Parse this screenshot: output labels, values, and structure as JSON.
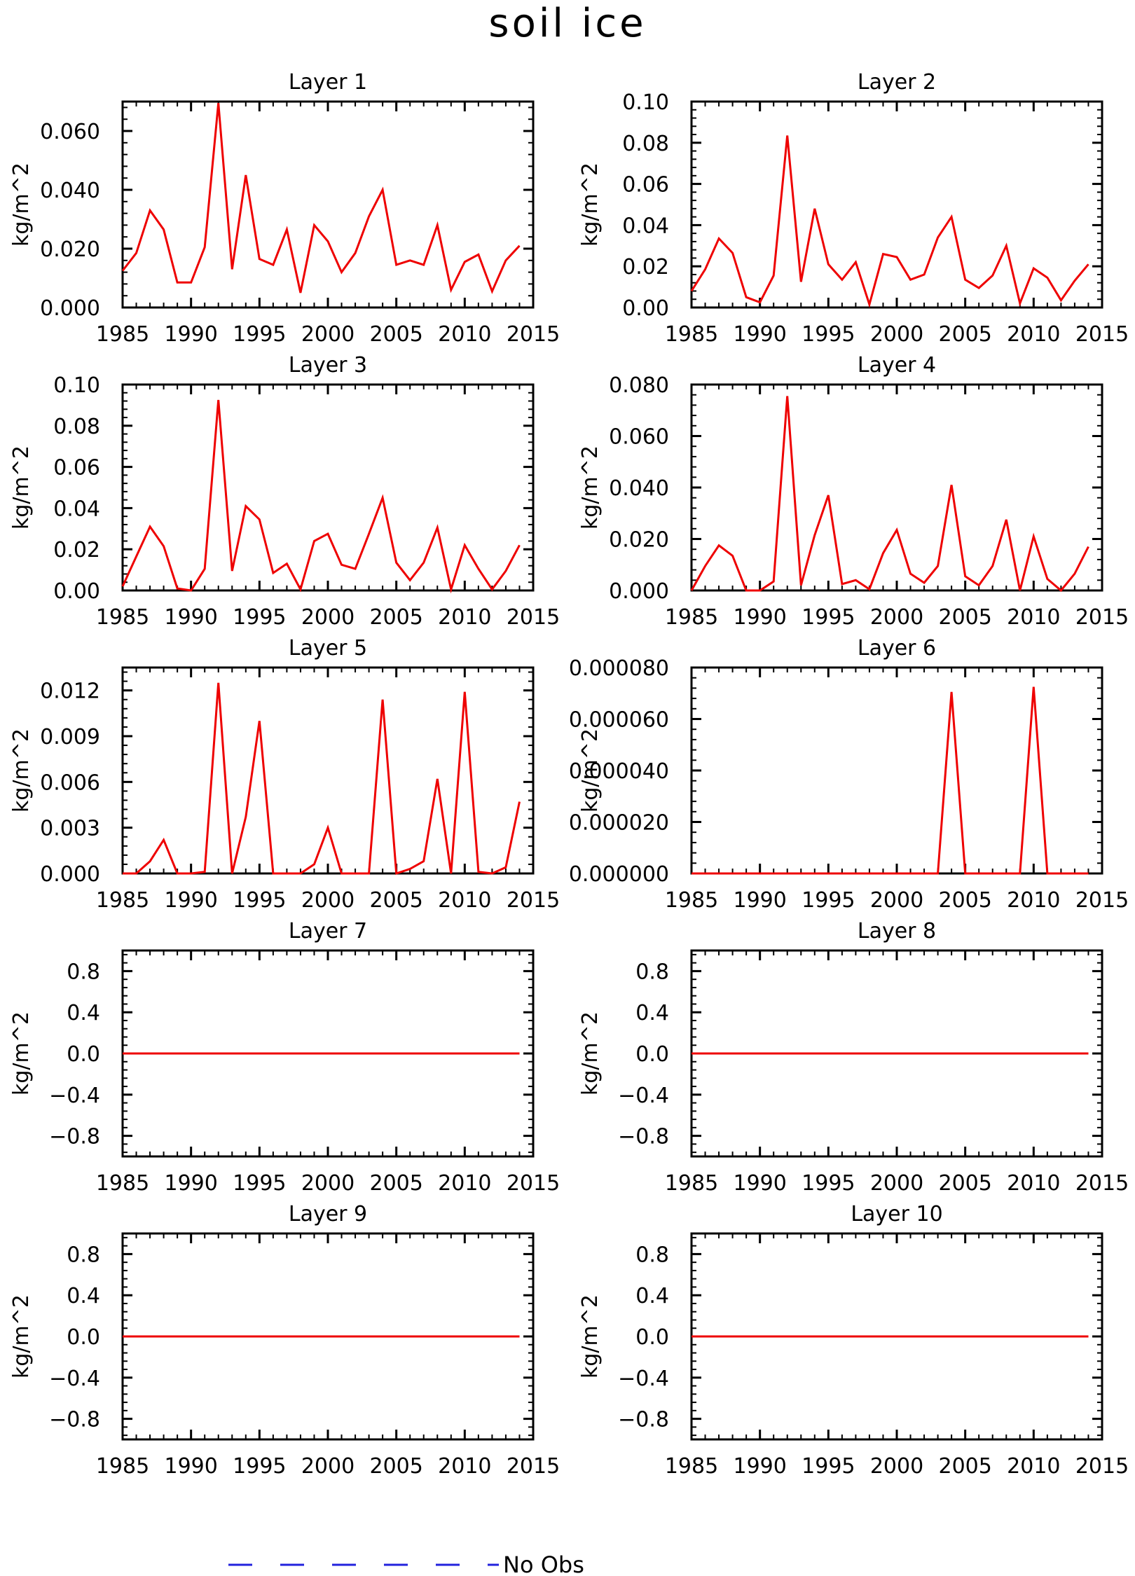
{
  "figure": {
    "title": "soil ice"
  },
  "legend": {
    "label": "No Obs",
    "color": "#2222dd",
    "style": "dashed"
  },
  "chart_data": [
    {
      "type": "line",
      "title": "Layer 1",
      "ylabel": "kg/m^2",
      "xlim": [
        1985,
        2015
      ],
      "ylim": [
        0,
        0.07
      ],
      "xticks": [
        1985,
        1990,
        1995,
        2000,
        2005,
        2010,
        2015
      ],
      "xtick_labels": [
        "1985",
        "1990",
        "1995",
        "2000",
        "2005",
        "2010",
        "2015"
      ],
      "yticks": [
        0,
        0.02,
        0.04,
        0.06
      ],
      "ytick_labels": [
        "0.000",
        "0.020",
        "0.040",
        "0.060"
      ],
      "series": [
        {
          "color": "#ee0000",
          "x": [
            1985,
            1986,
            1987,
            1988,
            1989,
            1990,
            1991,
            1992,
            1993,
            1994,
            1995,
            1996,
            1997,
            1998,
            1999,
            2000,
            2001,
            2002,
            2003,
            2004,
            2005,
            2006,
            2007,
            2008,
            2009,
            2010,
            2011,
            2012,
            2013,
            2014
          ],
          "values": [
            0.0125,
            0.0185,
            0.033,
            0.0265,
            0.0085,
            0.0085,
            0.0205,
            0.0695,
            0.013,
            0.045,
            0.0165,
            0.0145,
            0.0265,
            0.005,
            0.028,
            0.0225,
            0.012,
            0.0185,
            0.031,
            0.04,
            0.0145,
            0.016,
            0.0145,
            0.028,
            0.006,
            0.0155,
            0.018,
            0.0055,
            0.016,
            0.021
          ]
        }
      ]
    },
    {
      "type": "line",
      "title": "Layer 2",
      "ylabel": "kg/m^2",
      "xlim": [
        1985,
        2015
      ],
      "ylim": [
        0,
        0.1
      ],
      "xticks": [
        1985,
        1990,
        1995,
        2000,
        2005,
        2010,
        2015
      ],
      "xtick_labels": [
        "1985",
        "1990",
        "1995",
        "2000",
        "2005",
        "2010",
        "2015"
      ],
      "yticks": [
        0,
        0.02,
        0.04,
        0.06,
        0.08,
        0.1
      ],
      "ytick_labels": [
        "0.00",
        "0.02",
        "0.04",
        "0.06",
        "0.08",
        "0.10"
      ],
      "series": [
        {
          "color": "#ee0000",
          "x": [
            1985,
            1986,
            1987,
            1988,
            1989,
            1990,
            1991,
            1992,
            1993,
            1994,
            1995,
            1996,
            1997,
            1998,
            1999,
            2000,
            2001,
            2002,
            2003,
            2004,
            2005,
            2006,
            2007,
            2008,
            2009,
            2010,
            2011,
            2012,
            2013,
            2014
          ],
          "values": [
            0.008,
            0.0185,
            0.0335,
            0.0265,
            0.005,
            0.0025,
            0.0155,
            0.0835,
            0.0125,
            0.048,
            0.021,
            0.0135,
            0.022,
            0.0015,
            0.026,
            0.0245,
            0.0135,
            0.016,
            0.034,
            0.044,
            0.0135,
            0.0095,
            0.0155,
            0.03,
            0.002,
            0.019,
            0.0145,
            0.0035,
            0.013,
            0.021
          ]
        }
      ]
    },
    {
      "type": "line",
      "title": "Layer 3",
      "ylabel": "kg/m^2",
      "xlim": [
        1985,
        2015
      ],
      "ylim": [
        0,
        0.1
      ],
      "xticks": [
        1985,
        1990,
        1995,
        2000,
        2005,
        2010,
        2015
      ],
      "xtick_labels": [
        "1985",
        "1990",
        "1995",
        "2000",
        "2005",
        "2010",
        "2015"
      ],
      "yticks": [
        0,
        0.02,
        0.04,
        0.06,
        0.08,
        0.1
      ],
      "ytick_labels": [
        "0.00",
        "0.02",
        "0.04",
        "0.06",
        "0.08",
        "0.10"
      ],
      "series": [
        {
          "color": "#ee0000",
          "x": [
            1985,
            1986,
            1987,
            1988,
            1989,
            1990,
            1991,
            1992,
            1993,
            1994,
            1995,
            1996,
            1997,
            1998,
            1999,
            2000,
            2001,
            2002,
            2003,
            2004,
            2005,
            2006,
            2007,
            2008,
            2009,
            2010,
            2011,
            2012,
            2013,
            2014
          ],
          "values": [
            0.002,
            0.0165,
            0.031,
            0.0215,
            0.001,
            0.0,
            0.0105,
            0.0925,
            0.0095,
            0.041,
            0.0345,
            0.0085,
            0.013,
            0.0005,
            0.024,
            0.0275,
            0.0125,
            0.0105,
            0.0275,
            0.045,
            0.0135,
            0.005,
            0.0135,
            0.0305,
            0.0005,
            0.022,
            0.0105,
            0.0005,
            0.0095,
            0.022
          ]
        }
      ]
    },
    {
      "type": "line",
      "title": "Layer 4",
      "ylabel": "kg/m^2",
      "xlim": [
        1985,
        2015
      ],
      "ylim": [
        0,
        0.08
      ],
      "xticks": [
        1985,
        1990,
        1995,
        2000,
        2005,
        2010,
        2015
      ],
      "xtick_labels": [
        "1985",
        "1990",
        "1995",
        "2000",
        "2005",
        "2010",
        "2015"
      ],
      "yticks": [
        0,
        0.02,
        0.04,
        0.06,
        0.08
      ],
      "ytick_labels": [
        "0.000",
        "0.020",
        "0.040",
        "0.060",
        "0.080"
      ],
      "series": [
        {
          "color": "#ee0000",
          "x": [
            1985,
            1986,
            1987,
            1988,
            1989,
            1990,
            1991,
            1992,
            1993,
            1994,
            1995,
            1996,
            1997,
            1998,
            1999,
            2000,
            2001,
            2002,
            2003,
            2004,
            2005,
            2006,
            2007,
            2008,
            2009,
            2010,
            2011,
            2012,
            2013,
            2014
          ],
          "values": [
            0.0,
            0.0095,
            0.0175,
            0.0135,
            0.0,
            0.0,
            0.0035,
            0.0755,
            0.002,
            0.0215,
            0.037,
            0.0025,
            0.004,
            0.0005,
            0.0145,
            0.0235,
            0.0065,
            0.003,
            0.0095,
            0.041,
            0.0055,
            0.002,
            0.0095,
            0.0275,
            0.0,
            0.021,
            0.0045,
            0.0,
            0.0065,
            0.017
          ]
        }
      ]
    },
    {
      "type": "line",
      "title": "Layer 5",
      "ylabel": "kg/m^2",
      "xlim": [
        1985,
        2015
      ],
      "ylim": [
        0,
        0.0135
      ],
      "xticks": [
        1985,
        1990,
        1995,
        2000,
        2005,
        2010,
        2015
      ],
      "xtick_labels": [
        "1985",
        "1990",
        "1995",
        "2000",
        "2005",
        "2010",
        "2015"
      ],
      "yticks": [
        0,
        0.003,
        0.006,
        0.009,
        0.012
      ],
      "ytick_labels": [
        "0.000",
        "0.003",
        "0.006",
        "0.009",
        "0.012"
      ],
      "series": [
        {
          "color": "#ee0000",
          "x": [
            1985,
            1986,
            1987,
            1988,
            1989,
            1990,
            1991,
            1992,
            1993,
            1994,
            1995,
            1996,
            1997,
            1998,
            1999,
            2000,
            2001,
            2002,
            2003,
            2004,
            2005,
            2006,
            2007,
            2008,
            2009,
            2010,
            2011,
            2012,
            2013,
            2014
          ],
          "values": [
            0.0,
            0.0,
            0.0008,
            0.0022,
            0.0,
            0.0,
            0.0001,
            0.0125,
            0.0,
            0.0037,
            0.01,
            0.0,
            0.0,
            0.0,
            0.0006,
            0.003,
            0.0,
            0.0,
            0.0,
            0.0114,
            0.0,
            0.0003,
            0.0008,
            0.0062,
            0.0,
            0.0119,
            0.0001,
            0.0,
            0.0004,
            0.0047
          ]
        }
      ]
    },
    {
      "type": "line",
      "title": "Layer 6",
      "ylabel": "kg/m^2",
      "xlim": [
        1985,
        2015
      ],
      "ylim": [
        0,
        8e-05
      ],
      "xticks": [
        1985,
        1990,
        1995,
        2000,
        2005,
        2010,
        2015
      ],
      "xtick_labels": [
        "1985",
        "1990",
        "1995",
        "2000",
        "2005",
        "2010",
        "2015"
      ],
      "yticks": [
        0,
        2e-05,
        4e-05,
        6e-05,
        8e-05
      ],
      "ytick_labels": [
        "0.000000",
        "0.000020",
        "0.000040",
        "0.000060",
        "0.000080"
      ],
      "series": [
        {
          "color": "#ee0000",
          "x": [
            1985,
            1986,
            1987,
            1988,
            1989,
            1990,
            1991,
            1992,
            1993,
            1994,
            1995,
            1996,
            1997,
            1998,
            1999,
            2000,
            2001,
            2002,
            2003,
            2004,
            2005,
            2006,
            2007,
            2008,
            2009,
            2010,
            2011,
            2012,
            2013,
            2014
          ],
          "values": [
            0,
            0,
            0,
            0,
            0,
            0,
            0,
            0,
            0,
            0,
            0,
            0,
            0,
            0,
            0,
            0,
            0,
            0,
            0,
            7.05e-05,
            0,
            0,
            0,
            0,
            0,
            7.25e-05,
            0,
            0,
            0,
            0
          ]
        }
      ]
    },
    {
      "type": "line",
      "title": "Layer 7",
      "ylabel": "kg/m^2",
      "xlim": [
        1985,
        2015
      ],
      "ylim": [
        -1.0,
        1.0
      ],
      "xticks": [
        1985,
        1990,
        1995,
        2000,
        2005,
        2010,
        2015
      ],
      "xtick_labels": [
        "1985",
        "1990",
        "1995",
        "2000",
        "2005",
        "2010",
        "2015"
      ],
      "yticks": [
        -0.8,
        -0.4,
        0.0,
        0.4,
        0.8
      ],
      "ytick_labels": [
        "−0.8",
        "−0.4",
        "0.0",
        "0.4",
        "0.8"
      ],
      "series": [
        {
          "color": "#ee0000",
          "x": [
            1985,
            2014
          ],
          "values": [
            0,
            0
          ]
        }
      ]
    },
    {
      "type": "line",
      "title": "Layer 8",
      "ylabel": "kg/m^2",
      "xlim": [
        1985,
        2015
      ],
      "ylim": [
        -1.0,
        1.0
      ],
      "xticks": [
        1985,
        1990,
        1995,
        2000,
        2005,
        2010,
        2015
      ],
      "xtick_labels": [
        "1985",
        "1990",
        "1995",
        "2000",
        "2005",
        "2010",
        "2015"
      ],
      "yticks": [
        -0.8,
        -0.4,
        0.0,
        0.4,
        0.8
      ],
      "ytick_labels": [
        "−0.8",
        "−0.4",
        "0.0",
        "0.4",
        "0.8"
      ],
      "series": [
        {
          "color": "#ee0000",
          "x": [
            1985,
            2014
          ],
          "values": [
            0,
            0
          ]
        }
      ]
    },
    {
      "type": "line",
      "title": "Layer 9",
      "ylabel": "kg/m^2",
      "xlim": [
        1985,
        2015
      ],
      "ylim": [
        -1.0,
        1.0
      ],
      "xticks": [
        1985,
        1990,
        1995,
        2000,
        2005,
        2010,
        2015
      ],
      "xtick_labels": [
        "1985",
        "1990",
        "1995",
        "2000",
        "2005",
        "2010",
        "2015"
      ],
      "yticks": [
        -0.8,
        -0.4,
        0.0,
        0.4,
        0.8
      ],
      "ytick_labels": [
        "−0.8",
        "−0.4",
        "0.0",
        "0.4",
        "0.8"
      ],
      "series": [
        {
          "color": "#ee0000",
          "x": [
            1985,
            2014
          ],
          "values": [
            0,
            0
          ]
        }
      ]
    },
    {
      "type": "line",
      "title": "Layer 10",
      "ylabel": "kg/m^2",
      "xlim": [
        1985,
        2015
      ],
      "ylim": [
        -1.0,
        1.0
      ],
      "xticks": [
        1985,
        1990,
        1995,
        2000,
        2005,
        2010,
        2015
      ],
      "xtick_labels": [
        "1985",
        "1990",
        "1995",
        "2000",
        "2005",
        "2010",
        "2015"
      ],
      "yticks": [
        -0.8,
        -0.4,
        0.0,
        0.4,
        0.8
      ],
      "ytick_labels": [
        "−0.8",
        "−0.4",
        "0.0",
        "0.4",
        "0.8"
      ],
      "series": [
        {
          "color": "#ee0000",
          "x": [
            1985,
            2014
          ],
          "values": [
            0,
            0
          ]
        }
      ]
    }
  ]
}
